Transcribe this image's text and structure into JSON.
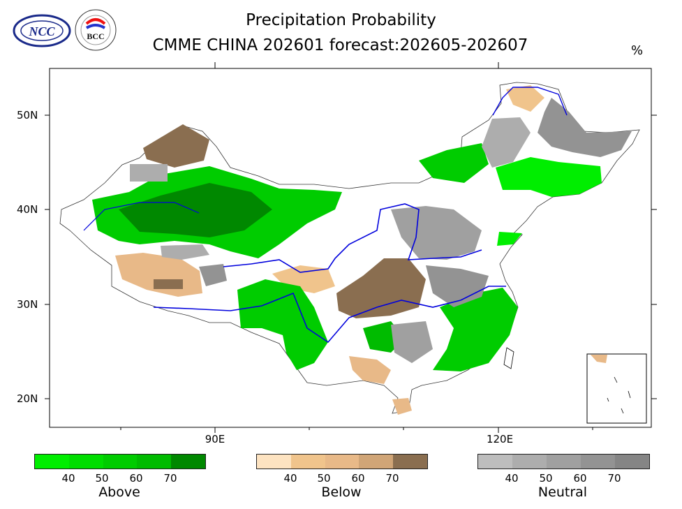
{
  "header": {
    "title_line1": "Precipitation Probability",
    "title_line2": "CMME CHINA 202601 forecast:202605-202607",
    "unit": "%"
  },
  "logos": {
    "ncc_text": "NCC",
    "bcc_text": "BCC"
  },
  "axes": {
    "lat_labels": [
      "50N",
      "40N",
      "30N",
      "20N"
    ],
    "lon_labels": [
      "90E",
      "120E"
    ]
  },
  "legend": {
    "above": {
      "name": "Above",
      "ticks": [
        "40",
        "50",
        "60",
        "70"
      ],
      "colors": [
        "#00ee00",
        "#00dd00",
        "#00cc00",
        "#00bb00",
        "#008800"
      ]
    },
    "below": {
      "name": "Below",
      "ticks": [
        "40",
        "50",
        "60",
        "70"
      ],
      "colors": [
        "#fde3c1",
        "#f0c48c",
        "#e8b988",
        "#d0a577",
        "#8a6e50"
      ]
    },
    "neutral": {
      "name": "Neutral",
      "ticks": [
        "40",
        "50",
        "60",
        "70"
      ],
      "colors": [
        "#bdbdbd",
        "#adadad",
        "#a0a0a0",
        "#939393",
        "#858585"
      ]
    }
  }
}
